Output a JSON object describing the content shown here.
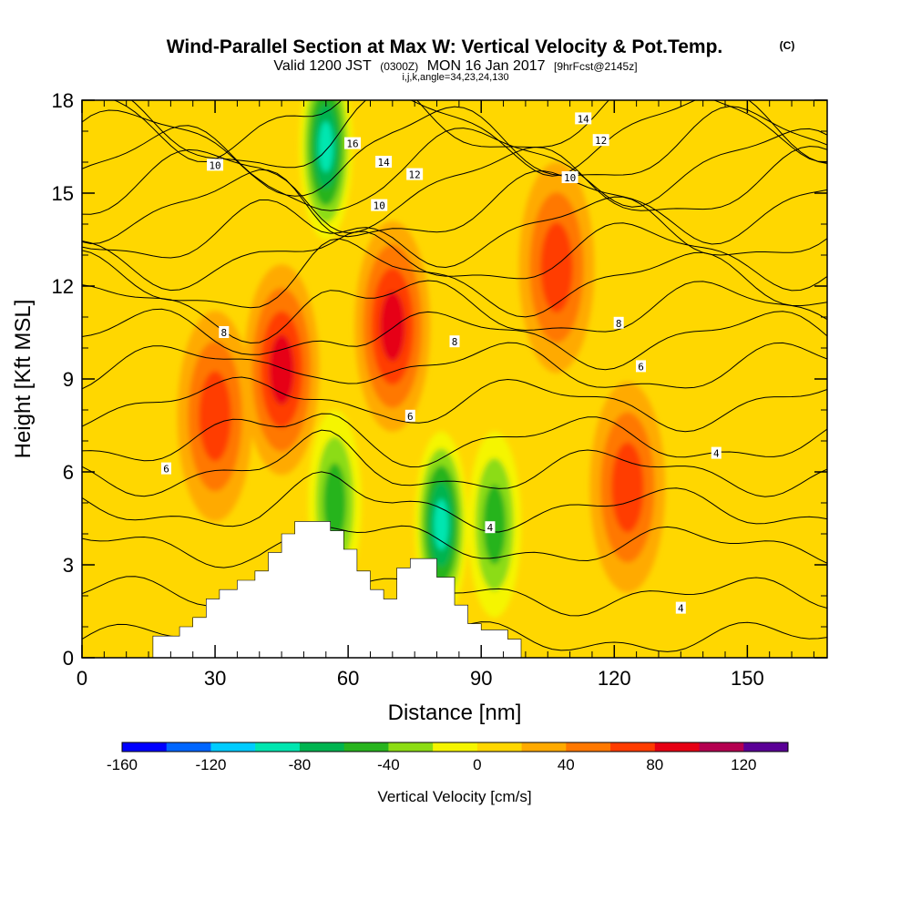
{
  "title": {
    "main": "Wind-Parallel Section at Max W: Vertical Velocity & Pot.Temp.",
    "copyright": "(C)",
    "valid_prefix": "Valid 1200 JST",
    "utc": "(0300Z)",
    "date": "MON 16 Jan 2017",
    "forecast": "[9hrFcst@2145z]",
    "params": "i,j,k,angle=34,23,24,130"
  },
  "chart_data": {
    "type": "heatmap",
    "xlabel": "Distance [nm]",
    "ylabel": "Height [Kft MSL]",
    "xlim": [
      0,
      168
    ],
    "ylim": [
      0,
      18
    ],
    "x_ticks": [
      "0",
      "30",
      "60",
      "90",
      "120",
      "150"
    ],
    "y_ticks": [
      "0",
      "3",
      "6",
      "9",
      "12",
      "15",
      "18"
    ],
    "colorbar": {
      "label": "Vertical Velocity [cm/s]",
      "min": -160,
      "max": 140,
      "step": 20,
      "tick_labels": [
        "-160",
        "-120",
        "-80",
        "-40",
        "0",
        "40",
        "80",
        "120"
      ],
      "colors": [
        "#0000ff",
        "#0066ff",
        "#00ccff",
        "#00e6b0",
        "#00b450",
        "#28b41e",
        "#8cdc14",
        "#f5f500",
        "#ffd700",
        "#ffaa00",
        "#ff7800",
        "#ff3c00",
        "#e60014",
        "#b40050",
        "#5a0096"
      ]
    },
    "vertical_velocity_features": [
      {
        "x": 30,
        "y": 7.8,
        "w_cms": 72,
        "kind": "updraft"
      },
      {
        "x": 45,
        "y": 9.3,
        "w_cms": 85,
        "kind": "updraft"
      },
      {
        "x": 70,
        "y": 10.7,
        "w_cms": 88,
        "kind": "updraft"
      },
      {
        "x": 107,
        "y": 12.6,
        "w_cms": 72,
        "kind": "updraft"
      },
      {
        "x": 123,
        "y": 5.5,
        "w_cms": 62,
        "kind": "updraft"
      },
      {
        "x": 55,
        "y": 16.5,
        "w_cms": -95,
        "kind": "downdraft"
      },
      {
        "x": 57,
        "y": 5.0,
        "w_cms": -45,
        "kind": "downdraft"
      },
      {
        "x": 81,
        "y": 4.3,
        "w_cms": -95,
        "kind": "downdraft"
      },
      {
        "x": 93,
        "y": 4.3,
        "w_cms": -50,
        "kind": "downdraft"
      }
    ],
    "contour_labels": [
      {
        "text": "10",
        "x": 30,
        "y": 15.9
      },
      {
        "text": "16",
        "x": 61,
        "y": 16.6
      },
      {
        "text": "14",
        "x": 68,
        "y": 16.0
      },
      {
        "text": "12",
        "x": 75,
        "y": 15.6
      },
      {
        "text": "10",
        "x": 67,
        "y": 14.6
      },
      {
        "text": "14",
        "x": 113,
        "y": 17.4
      },
      {
        "text": "12",
        "x": 117,
        "y": 16.7
      },
      {
        "text": "10",
        "x": 110,
        "y": 15.5
      },
      {
        "text": "8",
        "x": 32,
        "y": 10.5
      },
      {
        "text": "8",
        "x": 84,
        "y": 10.2
      },
      {
        "text": "8",
        "x": 121,
        "y": 10.8
      },
      {
        "text": "6",
        "x": 19,
        "y": 6.1
      },
      {
        "text": "6",
        "x": 74,
        "y": 7.8
      },
      {
        "text": "6",
        "x": 126,
        "y": 9.4
      },
      {
        "text": "4",
        "x": 92,
        "y": 4.2
      },
      {
        "text": "4",
        "x": 143,
        "y": 6.6
      },
      {
        "text": "4",
        "x": 135,
        "y": 1.6
      }
    ],
    "terrain": [
      [
        16,
        0.3
      ],
      [
        16,
        0.7
      ],
      [
        22,
        0.7
      ],
      [
        22,
        1.0
      ],
      [
        25,
        1.0
      ],
      [
        25,
        1.3
      ],
      [
        28,
        1.3
      ],
      [
        28,
        1.9
      ],
      [
        31,
        1.9
      ],
      [
        31,
        2.2
      ],
      [
        35,
        2.2
      ],
      [
        35,
        2.5
      ],
      [
        39,
        2.5
      ],
      [
        39,
        2.8
      ],
      [
        42,
        2.8
      ],
      [
        42,
        3.4
      ],
      [
        45,
        3.4
      ],
      [
        45,
        4.0
      ],
      [
        48,
        4.0
      ],
      [
        48,
        4.4
      ],
      [
        56,
        4.4
      ],
      [
        56,
        4.1
      ],
      [
        59,
        4.1
      ],
      [
        59,
        3.5
      ],
      [
        62,
        3.5
      ],
      [
        62,
        2.8
      ],
      [
        65,
        2.8
      ],
      [
        65,
        2.2
      ],
      [
        68,
        2.2
      ],
      [
        68,
        1.9
      ],
      [
        71,
        1.9
      ],
      [
        71,
        2.9
      ],
      [
        74,
        2.9
      ],
      [
        74,
        3.2
      ],
      [
        80,
        3.2
      ],
      [
        80,
        2.6
      ],
      [
        84,
        2.6
      ],
      [
        84,
        1.7
      ],
      [
        87,
        1.7
      ],
      [
        87,
        1.1
      ],
      [
        90,
        1.1
      ],
      [
        90,
        0.9
      ],
      [
        96,
        0.9
      ],
      [
        96,
        0.6
      ],
      [
        99,
        0.6
      ],
      [
        99,
        0.3
      ]
    ]
  }
}
